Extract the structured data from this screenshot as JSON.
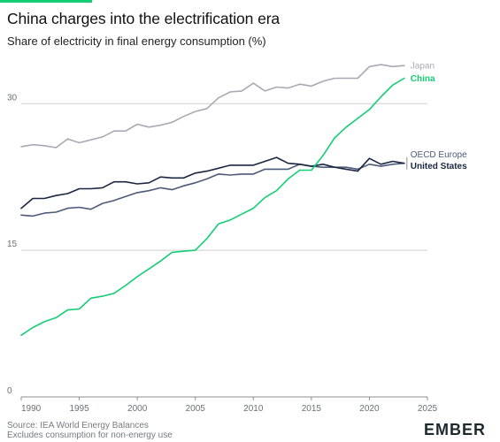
{
  "header": {
    "title": "China charges into the electrification era",
    "subtitle": "Share of electricity in final energy consumption (%)"
  },
  "footer": {
    "source_line1": "Source: IEA World Energy Balances",
    "source_line2": "Excludes consumption for non-energy use",
    "logo": "EMBER"
  },
  "colors": {
    "accent": "#13ce74",
    "china": "#13ce74",
    "japan": "#a9a9b6",
    "oecd_europe": "#4c5a7a",
    "united_states": "#1b2640",
    "grid": "#cfcfcf"
  },
  "chart_data": {
    "type": "line",
    "title": "China charges into the electrification era",
    "subtitle": "Share of electricity in final energy consumption (%)",
    "xlabel": "",
    "ylabel": "",
    "xlim": [
      1990,
      2025
    ],
    "ylim": [
      0,
      35
    ],
    "xticks": [
      1990,
      1995,
      2000,
      2005,
      2010,
      2015,
      2020,
      2025
    ],
    "yticks": [
      0,
      15,
      30
    ],
    "grid": true,
    "legend": "inline labels at line ends",
    "x": [
      1990,
      1991,
      1992,
      1993,
      1994,
      1995,
      1996,
      1997,
      1998,
      1999,
      2000,
      2001,
      2002,
      2003,
      2004,
      2005,
      2006,
      2007,
      2008,
      2009,
      2010,
      2011,
      2012,
      2013,
      2014,
      2015,
      2016,
      2017,
      2018,
      2019,
      2020,
      2021,
      2022,
      2023
    ],
    "series": [
      {
        "name": "Japan",
        "values": [
          25.6,
          25.8,
          25.7,
          25.5,
          26.4,
          26.0,
          26.3,
          26.6,
          27.2,
          27.2,
          27.9,
          27.6,
          27.8,
          28.1,
          28.7,
          29.2,
          29.5,
          30.6,
          31.2,
          31.3,
          32.1,
          31.3,
          31.7,
          31.6,
          32.0,
          31.8,
          32.3,
          32.6,
          32.6,
          32.6,
          33.8,
          34.0,
          33.8,
          33.9
        ]
      },
      {
        "name": "China",
        "values": [
          6.3,
          7.1,
          7.7,
          8.1,
          8.9,
          9.0,
          10.1,
          10.3,
          10.6,
          11.4,
          12.3,
          13.1,
          13.9,
          14.8,
          14.9,
          15.0,
          16.2,
          17.7,
          18.1,
          18.7,
          19.3,
          20.4,
          21.1,
          22.3,
          23.2,
          23.2,
          24.7,
          26.5,
          27.6,
          28.5,
          29.4,
          30.7,
          31.9,
          32.6
        ]
      },
      {
        "name": "OECD Europe",
        "values": [
          18.6,
          18.5,
          18.8,
          18.9,
          19.3,
          19.4,
          19.2,
          19.8,
          20.1,
          20.5,
          20.9,
          21.1,
          21.4,
          21.2,
          21.6,
          21.9,
          22.3,
          22.8,
          22.7,
          22.8,
          22.8,
          23.3,
          23.3,
          23.3,
          23.8,
          23.6,
          23.5,
          23.5,
          23.5,
          23.3,
          23.8,
          23.6,
          23.8,
          23.9
        ]
      },
      {
        "name": "United States",
        "values": [
          19.3,
          20.3,
          20.3,
          20.6,
          20.8,
          21.3,
          21.3,
          21.4,
          22.0,
          22.0,
          21.8,
          21.9,
          22.5,
          22.4,
          22.4,
          22.9,
          23.1,
          23.4,
          23.7,
          23.7,
          23.7,
          24.1,
          24.5,
          23.9,
          23.8,
          23.6,
          23.8,
          23.5,
          23.3,
          23.1,
          24.4,
          23.8,
          24.1,
          23.9
        ]
      }
    ]
  }
}
